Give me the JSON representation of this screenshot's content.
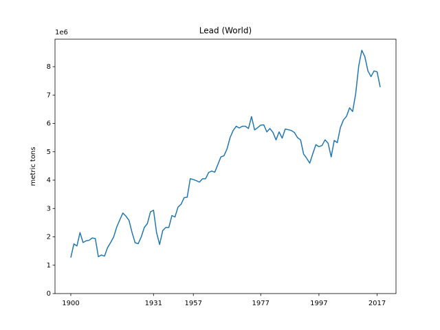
{
  "chart_data": {
    "type": "line",
    "title": "Lead (World)",
    "y_label": "metric tons",
    "y_offset_label": "1e6",
    "categories": [
      "1900",
      null,
      null,
      null,
      null,
      null,
      null,
      null,
      null,
      null,
      null,
      null,
      null,
      null,
      null,
      null,
      null,
      null,
      null,
      null,
      null,
      null,
      null,
      null,
      null,
      null,
      null,
      "1931",
      null,
      null,
      null,
      null,
      null,
      null,
      null,
      null,
      null,
      null,
      null,
      null,
      "1957",
      null,
      null,
      null,
      null,
      null,
      null,
      null,
      null,
      null,
      null,
      null,
      null,
      null,
      null,
      null,
      null,
      null,
      null,
      null,
      null,
      null,
      "1977",
      null,
      null,
      null,
      null,
      null,
      null,
      null,
      null,
      null,
      null,
      null,
      null,
      null,
      null,
      null,
      null,
      null,
      null,
      "1997",
      null,
      null,
      null,
      null,
      null,
      null,
      null,
      null,
      null,
      null,
      null,
      null,
      null,
      null,
      null,
      null,
      null,
      null,
      "2017",
      null
    ],
    "series": [
      {
        "color": "#1f77b4",
        "values": [
          1.27,
          1.75,
          1.68,
          2.15,
          1.8,
          1.86,
          1.88,
          1.96,
          1.94,
          1.3,
          1.36,
          1.32,
          1.62,
          1.8,
          2.0,
          2.35,
          2.6,
          2.84,
          2.73,
          2.58,
          2.15,
          1.79,
          1.76,
          2.0,
          2.33,
          2.47,
          2.88,
          2.94,
          2.15,
          1.73,
          2.22,
          2.33,
          2.33,
          2.75,
          2.7,
          3.05,
          3.15,
          3.38,
          3.4,
          4.05,
          4.02,
          3.98,
          3.93,
          4.05,
          4.05,
          4.27,
          4.32,
          4.28,
          4.55,
          4.82,
          4.86,
          5.1,
          5.5,
          5.75,
          5.9,
          5.84,
          5.9,
          5.9,
          5.82,
          6.24,
          5.77,
          5.85,
          5.94,
          5.95,
          5.7,
          5.82,
          5.68,
          5.42,
          5.7,
          5.48,
          5.8,
          5.78,
          5.75,
          5.68,
          5.5,
          5.42,
          4.92,
          4.77,
          4.6,
          4.93,
          5.25,
          5.18,
          5.22,
          5.42,
          5.3,
          4.82,
          5.4,
          5.32,
          5.85,
          6.12,
          6.25,
          6.55,
          6.42,
          7.05,
          8.03,
          8.58,
          8.35,
          7.85,
          7.65,
          7.85,
          7.82,
          7.28
        ]
      }
    ],
    "ylim": [
      0,
      8.97
    ],
    "yticks": [
      0,
      1,
      2,
      3,
      4,
      5,
      6,
      7,
      8
    ]
  }
}
